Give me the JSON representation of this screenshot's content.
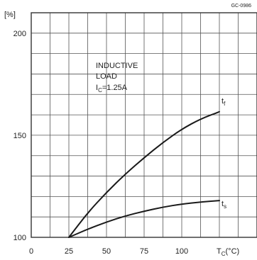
{
  "figure_code": "GC-0986",
  "chart_data": {
    "type": "line",
    "ylabel": "[%]",
    "xlabel_main": "T",
    "xlabel_sub": "C",
    "xlabel_unit": "(°C)",
    "xlim": [
      0,
      150
    ],
    "ylim": [
      100,
      210
    ],
    "x_major_ticks": [
      0,
      25,
      50,
      75,
      100
    ],
    "x_tick_labels": [
      "0",
      "25",
      "50",
      "75",
      "100"
    ],
    "y_major_ticks": [
      100,
      150,
      200
    ],
    "y_tick_labels": [
      "100",
      "150",
      "200"
    ],
    "x_grid_step": 12.5,
    "y_grid_step": 10,
    "grid": true,
    "annotation": {
      "line1": "INDUCTIVE",
      "line2": "LOAD",
      "line3_main": "I",
      "line3_sub": "C",
      "line3_rest": "=1.25A"
    },
    "series": [
      {
        "name": "t",
        "name_sub": "f",
        "x": [
          25,
          37.5,
          50,
          62.5,
          75,
          87.5,
          100,
          112.5,
          125
        ],
        "y": [
          100,
          112,
          122,
          131,
          139,
          146.5,
          153,
          158,
          161.5
        ]
      },
      {
        "name": "t",
        "name_sub": "s",
        "x": [
          25,
          37.5,
          50,
          62.5,
          75,
          87.5,
          100,
          112.5,
          125
        ],
        "y": [
          100,
          104,
          107.5,
          110.5,
          112.8,
          114.8,
          116.3,
          117.3,
          118
        ]
      }
    ]
  }
}
